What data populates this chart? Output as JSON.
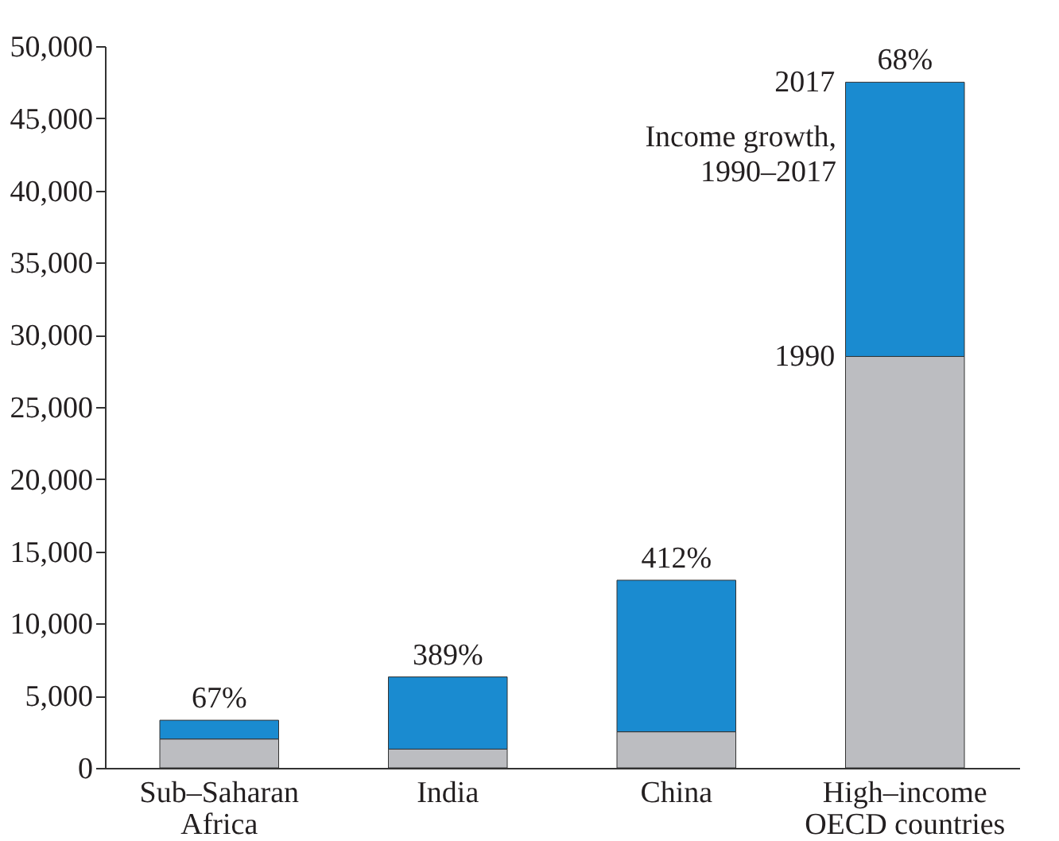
{
  "chart_data": {
    "type": "bar",
    "stacked": true,
    "categories": [
      "Sub–Saharan\nAfrica",
      "India",
      "China",
      "High–income\nOECD countries"
    ],
    "series": [
      {
        "color": "#bcbdc1",
        "values": [
          2000,
          1300,
          2500,
          28500
        ]
      },
      {
        "color": "#1a8bd0",
        "values": [
          1300,
          5000,
          10500,
          19000
        ]
      }
    ],
    "ylim": [
      0,
      50000
    ],
    "yticks": [
      0,
      {
        "value": 5000,
        "label": "5,000"
      },
      {
        "value": 10000,
        "label": "10,000"
      },
      {
        "value": 15000,
        "label": "15,000"
      },
      {
        "value": 20000,
        "label": "20,000"
      },
      {
        "value": 25000,
        "label": "25,000"
      },
      {
        "value": 30000,
        "label": "30,000"
      },
      {
        "value": 35000,
        "label": "35,000"
      },
      {
        "value": 40000,
        "label": "40,000"
      },
      {
        "value": 45000,
        "label": "45,000"
      },
      {
        "value": 50000,
        "label": "50,000"
      }
    ],
    "grid": false,
    "annotations": [
      {
        "text": "67%",
        "x": "Sub–Saharan\nAfrica",
        "y": 3300
      },
      {
        "text": "389%",
        "x": "India",
        "y": 6300
      },
      {
        "text": "412%",
        "x": "China",
        "y": 13000
      },
      {
        "text": "68%",
        "x": "High–income\nOECD countries",
        "y": 47500
      },
      {
        "text": "2017",
        "x": "High–income\nOECD countries",
        "y": 47500
      },
      "Income growth,\n1990–2017",
      {
        "text": "1990",
        "x": "High–income\nOECD countries",
        "y": 28500
      }
    ]
  }
}
